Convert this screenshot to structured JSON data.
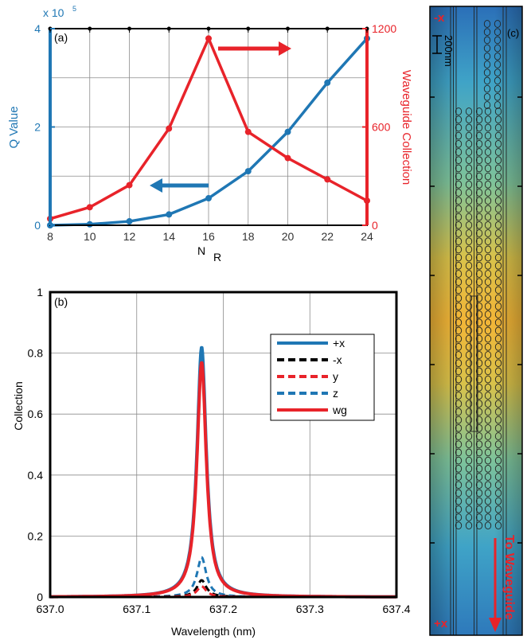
{
  "colors": {
    "blue": "#1f77b4",
    "red": "#e8232a",
    "black": "#000000",
    "grid": "#8c8c8c"
  },
  "chart_data": [
    {
      "panel_label": "(a)",
      "type": "line",
      "xlabel": "N",
      "xlabel_sub": "R",
      "ylabel_left": "Q  Value",
      "ylabel_right": "Waveguide Collection",
      "y_left_multiplier": "x 10",
      "y_left_multiplier_exp": "5",
      "xlim": [
        8,
        24
      ],
      "ylim_left": [
        0,
        4
      ],
      "ylim_right": [
        0,
        1200
      ],
      "x_ticks": [
        "8",
        "10",
        "12",
        "14",
        "16",
        "18",
        "20",
        "22",
        "24"
      ],
      "y_left_ticks": [
        "0",
        "2",
        "4"
      ],
      "y_right_ticks": [
        "0",
        "600",
        "1200"
      ],
      "x": [
        8,
        10,
        12,
        14,
        16,
        18,
        20,
        22,
        24
      ],
      "series": [
        {
          "axis": "left",
          "color": "blue",
          "values": [
            0.0,
            0.02,
            0.08,
            0.22,
            0.55,
            1.1,
            1.9,
            2.9,
            3.8
          ]
        },
        {
          "axis": "right",
          "color": "red",
          "values": [
            40,
            110,
            245,
            590,
            1140,
            570,
            410,
            280,
            150
          ]
        }
      ],
      "annotations": [
        {
          "type": "arrow",
          "direction": "left",
          "color": "blue",
          "series_axis": "left"
        },
        {
          "type": "arrow",
          "direction": "right",
          "color": "red",
          "series_axis": "right"
        }
      ],
      "grid": true
    },
    {
      "panel_label": "(b)",
      "type": "line",
      "xlabel": "Wavelength (nm)",
      "ylabel": "Collection",
      "xlim": [
        637.0,
        637.4
      ],
      "ylim": [
        0,
        1
      ],
      "x_ticks": [
        "637.0",
        "637.1",
        "637.2",
        "637.3",
        "637.4"
      ],
      "y_ticks": [
        "0",
        "0.2",
        "0.4",
        "0.6",
        "0.8",
        "1"
      ],
      "center": 637.175,
      "half_width": 0.0065,
      "series": [
        {
          "name": "+x",
          "color": "blue",
          "dash": false,
          "peak": 0.82
        },
        {
          "name": "-x",
          "color": "black",
          "dash": true,
          "peak": 0.055
        },
        {
          "name": "y",
          "color": "red",
          "dash": true,
          "peak": 0.035
        },
        {
          "name": "z",
          "color": "blue",
          "dash": true,
          "peak": 0.13
        },
        {
          "name": "wg",
          "color": "red",
          "dash": false,
          "peak": 0.77
        }
      ],
      "legend_position": "upper-right",
      "grid": true
    }
  ],
  "panel_c": {
    "label": "(c)",
    "top_label": "-x",
    "bottom_label": "+x",
    "scale_bar": "200nm",
    "arrow_label": "To Waveguide"
  }
}
